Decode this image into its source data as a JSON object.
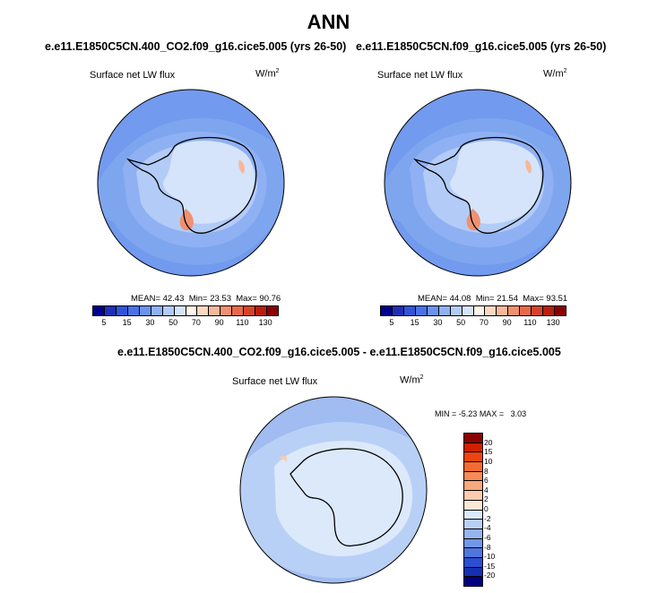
{
  "title": "ANN",
  "panels": [
    {
      "case": "e.e11.E1850C5CN.400_CO2.f09_g16.cice5.005 (yrs 26-50)",
      "variable": "Surface net LW flux",
      "units": "W/m",
      "units_sup": "2",
      "mean_label": "MEAN=",
      "mean": "42.43",
      "min_label": "Min=",
      "min": "23.53",
      "max_label": "Max=",
      "max": "90.76"
    },
    {
      "case": "e.e11.E1850C5CN.f09_g16.cice5.005 (yrs 26-50)",
      "variable": "Surface net LW flux",
      "units": "W/m",
      "units_sup": "2",
      "mean_label": "MEAN=",
      "mean": "44.08",
      "min_label": "Min=",
      "min": "21.54",
      "max_label": "Max=",
      "max": "93.51"
    }
  ],
  "diff": {
    "case": "e.e11.E1850C5CN.400_CO2.f09_g16.cice5.005 - e.e11.E1850C5CN.f09_g16.cice5.005",
    "variable": "Surface net LW flux",
    "units": "W/m",
    "units_sup": "2",
    "min_label": "MIN =",
    "min": "-5.23",
    "max_label": "MAX =",
    "max": "3.03"
  },
  "colorbar_abs": {
    "labels": [
      "5",
      "15",
      "30",
      "50",
      "70",
      "90",
      "110",
      "130"
    ],
    "colors": [
      "#00008b",
      "#1f2fb3",
      "#2f55d6",
      "#4a72e6",
      "#6b92ee",
      "#8fb0f3",
      "#b3cbf7",
      "#d5e4fa",
      "#fff6ea",
      "#fbd8c3",
      "#f6b79b",
      "#ef9170",
      "#e66a4a",
      "#d6432b",
      "#b8200f",
      "#8b0000"
    ]
  },
  "colorbar_diff": {
    "labels": [
      "20",
      "15",
      "10",
      "8",
      "6",
      "4",
      "2",
      "0",
      "-2",
      "-4",
      "-6",
      "-8",
      "-10",
      "-15",
      "-20"
    ],
    "colors": [
      "#8b0000",
      "#cc2200",
      "#ee4411",
      "#f46a33",
      "#f78a55",
      "#f9a97c",
      "#fbcbad",
      "#fde8d8",
      "#dce9fb",
      "#b9d0f6",
      "#96b4ef",
      "#7397e8",
      "#4f76dd",
      "#2a4fd2",
      "#1630b0",
      "#000080"
    ]
  }
}
